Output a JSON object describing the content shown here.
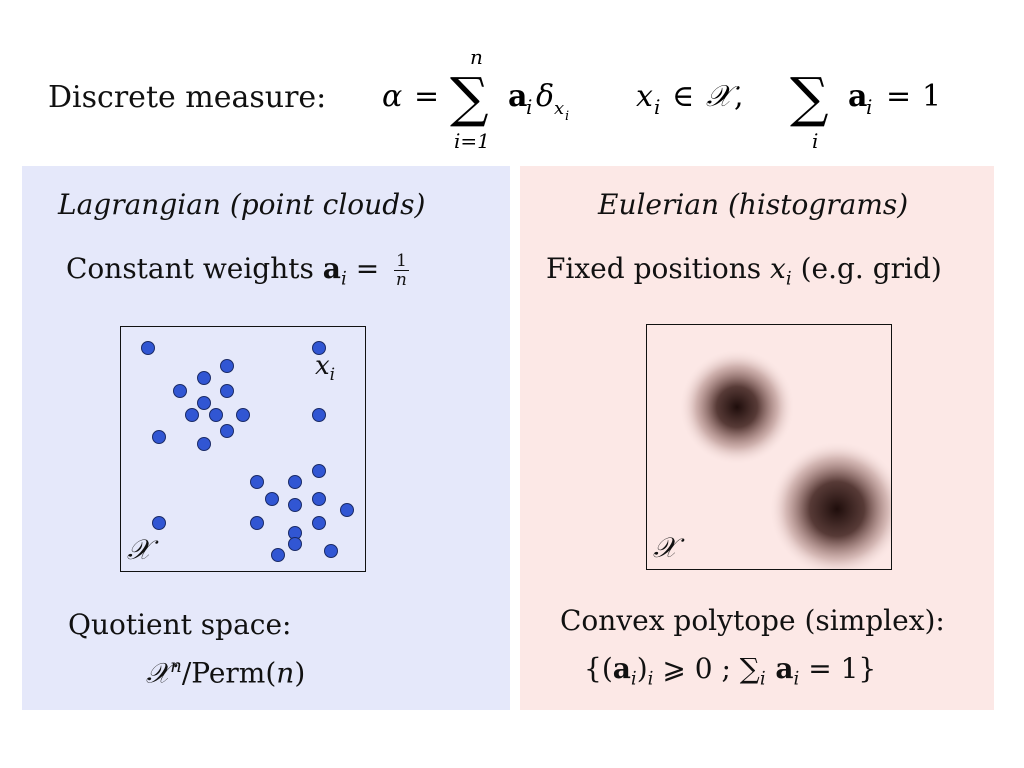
{
  "header": {
    "label": "Discrete measure:",
    "formula": {
      "alpha": "α",
      "eq": "=",
      "sum": "∑",
      "upper": "n",
      "lower": "i=1",
      "a": "a",
      "i": "i",
      "delta": "δ",
      "x": "x",
      "in": "∈",
      "X": "𝒳",
      "comma": ",",
      "sum_lower": "i",
      "one": "1"
    }
  },
  "left_panel": {
    "bg_color": "#e5e8fa",
    "title": "Lagrangian (point clouds)",
    "subtitle_prefix": "Constant weights",
    "subtitle_a": "a",
    "subtitle_i": "i",
    "subtitle_eq": "=",
    "frac_num": "1",
    "frac_den": "n",
    "point_label_x": "x",
    "point_label_i": "i",
    "domain_label": "𝒳",
    "bottom_line1": "Quotient space:",
    "bottom_X": "𝒳",
    "bottom_n": "n",
    "bottom_rest_1": "/Perm(",
    "bottom_rest_n": "n",
    "bottom_rest_2": ")",
    "point_color": "#3156d3"
  },
  "right_panel": {
    "bg_color": "#fce8e6",
    "title": "Eulerian (histograms)",
    "subtitle_prefix": "Fixed positions",
    "subtitle_x": "x",
    "subtitle_i": "i",
    "subtitle_suffix": "(e.g. grid)",
    "domain_label": "𝒳",
    "bottom_line1": "Convex polytope (simplex):",
    "bottom_line2_a": "{(",
    "bottom_line2_bold": "a",
    "bottom_line2_i": "i",
    "bottom_line2_b": ")",
    "bottom_line2_i2": "i",
    "bottom_line2_c": " ⩾ 0 ; ∑",
    "bottom_line2_i3": "i",
    "bottom_line2_bold2": " a",
    "bottom_line2_i4": "i",
    "bottom_line2_d": " = 1}",
    "blob_color": "#2a1210"
  }
}
